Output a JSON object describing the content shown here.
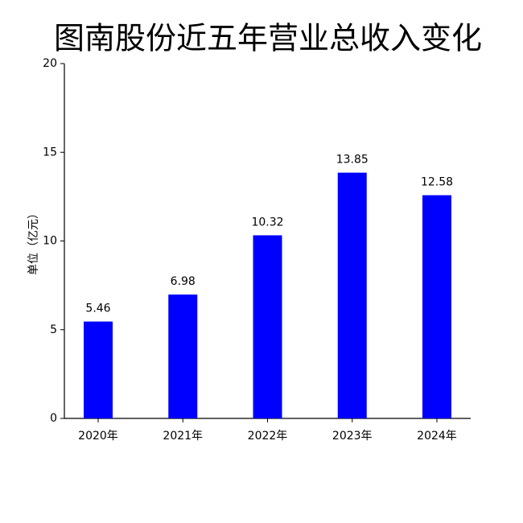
{
  "chart_data": {
    "type": "bar",
    "title": "图南股份近五年营业总收入变化",
    "y_label": "单位（亿元）",
    "categories": [
      "2020年",
      "2021年",
      "2022年",
      "2023年",
      "2024年"
    ],
    "values": [
      5.46,
      6.98,
      10.32,
      13.85,
      12.58
    ],
    "color": "#0000ff",
    "ylim": [
      0,
      20
    ],
    "yticks": [
      0,
      5,
      10,
      15,
      20
    ],
    "grid": false
  }
}
